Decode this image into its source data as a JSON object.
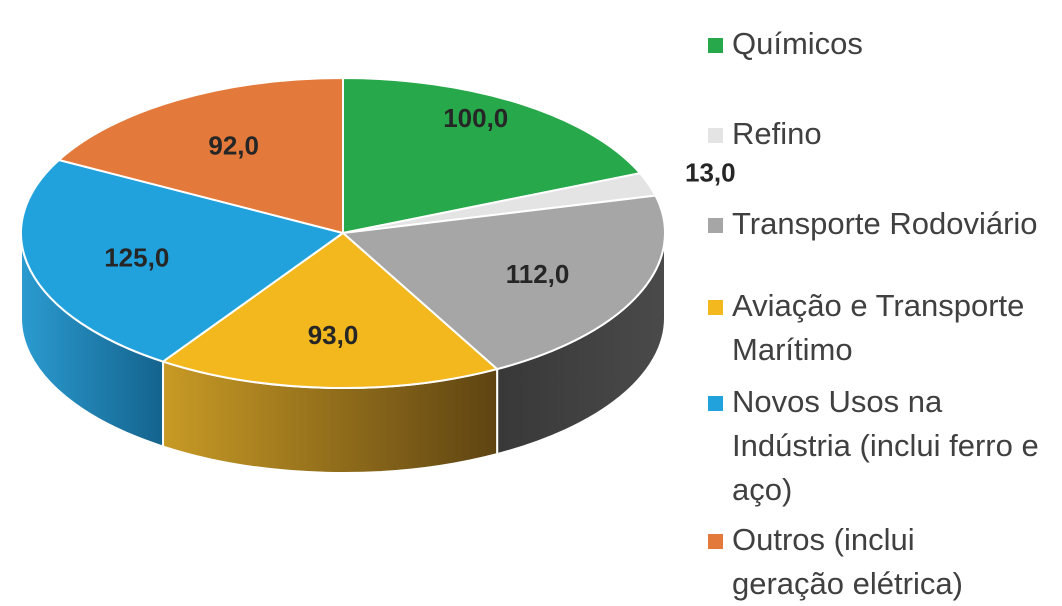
{
  "chart_data": {
    "type": "pie",
    "style": "3d",
    "title": "",
    "legend_position": "right",
    "slices": [
      {
        "name": "Químicos",
        "value": 100,
        "label": "100,0",
        "color": "#27a84a"
      },
      {
        "name": "Refino",
        "value": 13,
        "label": "13,0",
        "color": "#e4e4e4"
      },
      {
        "name": "Transporte Rodoviário",
        "value": 112,
        "label": "112,0",
        "color": "#a6a6a6"
      },
      {
        "name": "Aviação e Transporte Marítimo",
        "value": 93,
        "label": "93,0",
        "color": "#f2b81e"
      },
      {
        "name": "Novos Usos na Indústria (inclui ferro e aço)",
        "value": 125,
        "label": "125,0",
        "color": "#22a2dc"
      },
      {
        "name": "Outros (inclui geração elétrica)",
        "value": 92,
        "label": "92,0",
        "color": "#e3793a"
      }
    ]
  }
}
